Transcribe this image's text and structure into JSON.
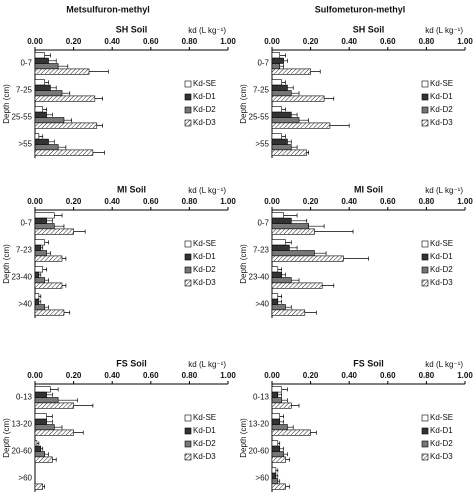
{
  "column_titles": [
    "Metsulfuron-methyl",
    "Sulfometuron-methyl"
  ],
  "chart_data": [
    {
      "type": "barh",
      "title": "SH Soil",
      "x_label": "kd (L kg⁻¹)",
      "y_label": "Depth (cm)",
      "legend": "right",
      "xlim": [
        0,
        1
      ],
      "xticks": [
        {
          "value": 0,
          "label": "0.00"
        },
        {
          "value": 0.2,
          "label": "0.20"
        },
        {
          "value": 0.4,
          "label": "0.40"
        },
        {
          "value": 0.6,
          "label": "0.60"
        },
        {
          "value": 0.8,
          "label": "0.80"
        },
        {
          "value": 1,
          "label": "1.00"
        }
      ],
      "categories": [
        "0-7",
        "7-25",
        "25-55",
        ">55"
      ],
      "series": [
        {
          "name": "Kd-SE",
          "color": "#ffffff",
          "values": [
            0.05,
            0.05,
            0.04,
            0.02
          ],
          "errors": [
            0.03,
            0.02,
            0.02,
            0.02
          ]
        },
        {
          "name": "Kd-D1",
          "color": "#333333",
          "values": [
            0.07,
            0.08,
            0.06,
            0.07
          ],
          "errors": [
            0.04,
            0.03,
            0.03,
            0.03
          ]
        },
        {
          "name": "Kd-D2",
          "color": "#777777",
          "values": [
            0.12,
            0.14,
            0.15,
            0.12
          ],
          "errors": [
            0.05,
            0.04,
            0.04,
            0.04
          ]
        },
        {
          "name": "Kd-D3",
          "color": "#ffffff",
          "hatch": true,
          "values": [
            0.28,
            0.31,
            0.32,
            0.3
          ],
          "errors": [
            0.1,
            0.04,
            0.03,
            0.06
          ]
        }
      ]
    },
    {
      "type": "barh",
      "title": "SH Soil",
      "x_label": "kd (L kg⁻¹)",
      "y_label": "Depth (cm)",
      "legend": "right",
      "xlim": [
        0,
        1
      ],
      "xticks": [
        {
          "value": 0,
          "label": "0.00"
        },
        {
          "value": 0.2,
          "label": "0.20"
        },
        {
          "value": 0.4,
          "label": "0.40"
        },
        {
          "value": 0.6,
          "label": "0.60"
        },
        {
          "value": 0.8,
          "label": "0.80"
        },
        {
          "value": 1,
          "label": "1.00"
        }
      ],
      "categories": [
        "0-7",
        "7-25",
        "25-55",
        ">55"
      ],
      "series": [
        {
          "name": "Kd-SE",
          "color": "#ffffff",
          "values": [
            0.04,
            0.05,
            0.05,
            0.05
          ],
          "errors": [
            0.03,
            0.02,
            0.02,
            0.02
          ]
        },
        {
          "name": "Kd-D1",
          "color": "#333333",
          "values": [
            0.06,
            0.08,
            0.1,
            0.08
          ],
          "errors": [
            0.02,
            0.03,
            0.03,
            0.02
          ]
        },
        {
          "name": "Kd-D2",
          "color": "#777777",
          "values": [
            0.04,
            0.1,
            0.14,
            0.1
          ],
          "errors": [
            0.02,
            0.04,
            0.05,
            0.03
          ]
        },
        {
          "name": "Kd-D3",
          "color": "#ffffff",
          "hatch": true,
          "values": [
            0.2,
            0.27,
            0.3,
            0.18
          ],
          "errors": [
            0.05,
            0.05,
            0.1,
            0.01
          ]
        }
      ]
    },
    {
      "type": "barh",
      "title": "MI Soil",
      "x_label": "kd (L kg⁻¹)",
      "y_label": "Depth (cm)",
      "legend": "right",
      "xlim": [
        0,
        1
      ],
      "xticks": [
        {
          "value": 0,
          "label": "0.00"
        },
        {
          "value": 0.2,
          "label": "0.20"
        },
        {
          "value": 0.4,
          "label": "0.40"
        },
        {
          "value": 0.6,
          "label": "0.60"
        },
        {
          "value": 0.8,
          "label": "0.80"
        },
        {
          "value": 1,
          "label": "1.00"
        }
      ],
      "categories": [
        "0-7",
        "7-23",
        "23-40",
        ">40"
      ],
      "series": [
        {
          "name": "Kd-SE",
          "color": "#ffffff",
          "values": [
            0.1,
            0.05,
            0.04,
            0.02
          ],
          "errors": [
            0.04,
            0.02,
            0.02,
            0.01
          ]
        },
        {
          "name": "Kd-D1",
          "color": "#333333",
          "values": [
            0.06,
            0.03,
            0.02,
            0.02
          ],
          "errors": [
            0.03,
            0.01,
            0.01,
            0.01
          ]
        },
        {
          "name": "Kd-D2",
          "color": "#777777",
          "values": [
            0.1,
            0.06,
            0.05,
            0.05
          ],
          "errors": [
            0.05,
            0.02,
            0.02,
            0.02
          ]
        },
        {
          "name": "Kd-D3",
          "color": "#ffffff",
          "hatch": true,
          "values": [
            0.2,
            0.14,
            0.14,
            0.15
          ],
          "errors": [
            0.06,
            0.02,
            0.02,
            0.03
          ]
        }
      ]
    },
    {
      "type": "barh",
      "title": "MI Soil",
      "x_label": "kd (L kg⁻¹)",
      "y_label": "Depth (cm)",
      "legend": "right",
      "xlim": [
        0,
        1
      ],
      "xticks": [
        {
          "value": 0,
          "label": "0.00"
        },
        {
          "value": 0.2,
          "label": "0.20"
        },
        {
          "value": 0.4,
          "label": "0.40"
        },
        {
          "value": 0.6,
          "label": "0.60"
        },
        {
          "value": 0.8,
          "label": "0.80"
        },
        {
          "value": 1,
          "label": "1.00"
        }
      ],
      "categories": [
        "0-7",
        "7-23",
        "23-40",
        ">40"
      ],
      "series": [
        {
          "name": "Kd-SE",
          "color": "#ffffff",
          "values": [
            0.06,
            0.07,
            0.03,
            0.03
          ],
          "errors": [
            0.07,
            0.03,
            0.02,
            0.02
          ]
        },
        {
          "name": "Kd-D1",
          "color": "#333333",
          "values": [
            0.1,
            0.09,
            0.05,
            0.03
          ],
          "errors": [
            0.08,
            0.04,
            0.02,
            0.02
          ]
        },
        {
          "name": "Kd-D2",
          "color": "#777777",
          "values": [
            0.19,
            0.22,
            0.1,
            0.07
          ],
          "errors": [
            0.08,
            0.06,
            0.04,
            0.03
          ]
        },
        {
          "name": "Kd-D3",
          "color": "#ffffff",
          "hatch": true,
          "values": [
            0.22,
            0.37,
            0.26,
            0.17
          ],
          "errors": [
            0.2,
            0.13,
            0.06,
            0.06
          ]
        }
      ]
    },
    {
      "type": "barh",
      "title": "FS Soil",
      "x_label": "kd (L kg⁻¹)",
      "y_label": "Depth (cm)",
      "legend": "right",
      "xlim": [
        0,
        1
      ],
      "xticks": [
        {
          "value": 0,
          "label": "0.00"
        },
        {
          "value": 0.2,
          "label": "0.20"
        },
        {
          "value": 0.4,
          "label": "0.40"
        },
        {
          "value": 0.6,
          "label": "0.60"
        },
        {
          "value": 0.8,
          "label": "0.80"
        },
        {
          "value": 1,
          "label": "1.00"
        }
      ],
      "categories": [
        "0-13",
        "13-20",
        "20-60",
        ">60"
      ],
      "series": [
        {
          "name": "Kd-SE",
          "color": "#ffffff",
          "values": [
            0.08,
            0.06,
            0.01,
            0
          ],
          "errors": [
            0.04,
            0.03,
            0.01,
            0
          ]
        },
        {
          "name": "Kd-D1",
          "color": "#333333",
          "values": [
            0.06,
            0.06,
            0.03,
            0
          ],
          "errors": [
            0.03,
            0.03,
            0.01,
            0
          ]
        },
        {
          "name": "Kd-D2",
          "color": "#777777",
          "values": [
            0.12,
            0.1,
            0.05,
            0
          ],
          "errors": [
            0.1,
            0.04,
            0.02,
            0
          ]
        },
        {
          "name": "Kd-D3",
          "color": "#ffffff",
          "hatch": true,
          "values": [
            0.2,
            0.2,
            0.09,
            0.04
          ],
          "errors": [
            0.1,
            0.05,
            0.02,
            0.01
          ]
        }
      ]
    },
    {
      "type": "barh",
      "title": "FS Soil",
      "x_label": "kd (L kg⁻¹)",
      "y_label": "Depth (cm)",
      "legend": "right",
      "xlim": [
        0,
        1
      ],
      "xticks": [
        {
          "value": 0,
          "label": "0.00"
        },
        {
          "value": 0.2,
          "label": "0.20"
        },
        {
          "value": 0.4,
          "label": "0.40"
        },
        {
          "value": 0.6,
          "label": "0.60"
        },
        {
          "value": 0.8,
          "label": "0.80"
        },
        {
          "value": 1,
          "label": "1.00"
        }
      ],
      "categories": [
        "0-13",
        "13-20",
        "20-60",
        ">60"
      ],
      "series": [
        {
          "name": "Kd-SE",
          "color": "#ffffff",
          "values": [
            0.05,
            0.04,
            0.03,
            0.02
          ],
          "errors": [
            0.03,
            0.02,
            0.01,
            0.01
          ]
        },
        {
          "name": "Kd-D1",
          "color": "#333333",
          "values": [
            0.03,
            0.04,
            0.04,
            0.02
          ],
          "errors": [
            0.02,
            0.02,
            0.02,
            0.01
          ]
        },
        {
          "name": "Kd-D2",
          "color": "#777777",
          "values": [
            0.05,
            0.08,
            0.06,
            0.03
          ],
          "errors": [
            0.03,
            0.03,
            0.02,
            0.01
          ]
        },
        {
          "name": "Kd-D3",
          "color": "#ffffff",
          "hatch": true,
          "values": [
            0.1,
            0.2,
            0.07,
            0.07
          ],
          "errors": [
            0.04,
            0.03,
            0.02,
            0.02
          ]
        }
      ]
    }
  ]
}
